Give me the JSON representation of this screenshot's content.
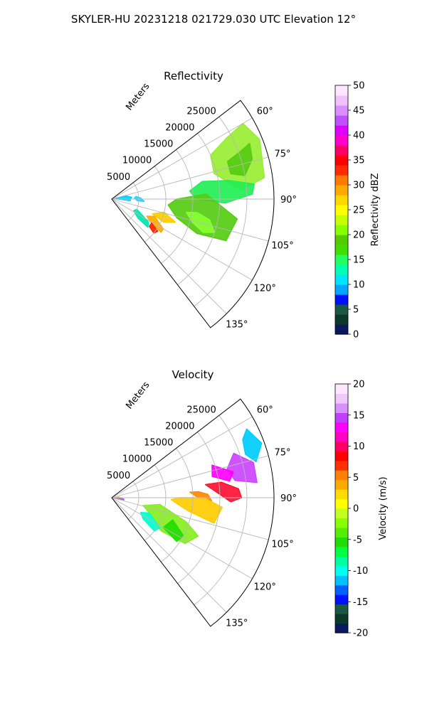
{
  "suptitle": "SKYLER-HU  20231218  021729.030 UTC Elevation 12°",
  "chart_data": [
    {
      "type": "polar-sector",
      "title": "Reflectivity",
      "radial_label": "Meters",
      "radial_ticks": [
        "5000",
        "10000",
        "15000",
        "20000",
        "25000"
      ],
      "radial_values": [
        5000,
        10000,
        15000,
        20000,
        25000
      ],
      "r_max": 30000,
      "theta_ticks": [
        "60°",
        "75°",
        "90°",
        "105°",
        "120°",
        "135°"
      ],
      "theta_values": [
        60,
        75,
        90,
        105,
        120,
        135
      ],
      "theta_range": [
        52.5,
        142.5
      ],
      "grid": true,
      "colorbar": {
        "label": "Reflectivity dBZ",
        "ticks": [
          "0",
          "5",
          "10",
          "15",
          "20",
          "25",
          "30",
          "35",
          "40",
          "45",
          "50"
        ],
        "range": [
          0,
          50
        ],
        "colors": [
          "#0a1a60",
          "#0c3a2a",
          "#1a5a40",
          "#0010ff",
          "#00a8ff",
          "#00e4ff",
          "#00ffb0",
          "#22ff60",
          "#44dd00",
          "#55cc00",
          "#88ff00",
          "#c8ff00",
          "#ffff00",
          "#ffd800",
          "#ffaa00",
          "#ff7a00",
          "#ff2a00",
          "#ff0000",
          "#ff0066",
          "#ff00cc",
          "#e000ff",
          "#c050ff",
          "#d890ff",
          "#f0c0ff",
          "#ffe8ff"
        ]
      },
      "echo_regions": [
        {
          "color": "#99ee33",
          "polygon": [
            [
              60,
              28000
            ],
            [
              68,
              29500
            ],
            [
              82,
              28500
            ],
            [
              86,
              24000
            ],
            [
              76,
              19500
            ],
            [
              66,
              20000
            ],
            [
              62,
              24000
            ]
          ]
        },
        {
          "color": "#55cc11",
          "polygon": [
            [
              68,
              27500
            ],
            [
              74,
              27000
            ],
            [
              80,
              25000
            ],
            [
              78,
              22500
            ],
            [
              72,
              22500
            ],
            [
              70,
              25000
            ]
          ]
        },
        {
          "color": "#22ee55",
          "polygon": [
            [
              79,
              17000
            ],
            [
              84,
              14500
            ],
            [
              90,
              15500
            ],
            [
              92,
              21000
            ],
            [
              88,
              26000
            ],
            [
              84,
              26500
            ],
            [
              81,
              22000
            ]
          ]
        },
        {
          "color": "#55cc11",
          "polygon": [
            [
              87,
              17500
            ],
            [
              92,
              19500
            ],
            [
              99,
              23500
            ],
            [
              110,
              22500
            ],
            [
              112,
              17000
            ],
            [
              106,
              12500
            ],
            [
              96,
              10500
            ],
            [
              90,
              12000
            ]
          ]
        },
        {
          "color": "#88ff33",
          "polygon": [
            [
              100,
              14000
            ],
            [
              106,
              15500
            ],
            [
              110,
              18000
            ],
            [
              108,
              20000
            ],
            [
              102,
              18500
            ],
            [
              99,
              16000
            ]
          ]
        },
        {
          "color": "#ffcc00",
          "polygon": [
            [
              104,
              10000
            ],
            [
              110,
              12500
            ],
            [
              114,
              10500
            ],
            [
              110,
              8000
            ]
          ]
        },
        {
          "color": "#ffaa00",
          "polygon": [
            [
              112,
              8500
            ],
            [
              120,
              11000
            ],
            [
              124,
              11000
            ],
            [
              121,
              8500
            ],
            [
              116,
              7200
            ]
          ]
        },
        {
          "color": "#ff2200",
          "polygon": [
            [
              121,
              8600
            ],
            [
              125,
              10400
            ],
            [
              129,
              10000
            ],
            [
              126,
              8600
            ]
          ]
        },
        {
          "color": "#00e5b0",
          "polygon": [
            [
              112,
              5000
            ],
            [
              122,
              8000
            ],
            [
              128,
              8500
            ],
            [
              126,
              6000
            ],
            [
              118,
              4600
            ]
          ]
        },
        {
          "color": "#00d2ff",
          "polygon": [
            [
              76,
              700
            ],
            [
              86,
              800
            ],
            [
              95,
              3400
            ],
            [
              85,
              3700
            ],
            [
              78,
              2800
            ]
          ]
        },
        {
          "color": "#22d3ff",
          "polygon": [
            [
              84,
              4500
            ],
            [
              88,
              5400
            ],
            [
              94,
              6000
            ],
            [
              94,
              4800
            ],
            [
              88,
              4200
            ]
          ]
        }
      ]
    },
    {
      "type": "polar-sector",
      "title": "Velocity",
      "radial_label": "Meters",
      "radial_ticks": [
        "5000",
        "10000",
        "15000",
        "20000",
        "25000"
      ],
      "radial_values": [
        5000,
        10000,
        15000,
        20000,
        25000
      ],
      "r_max": 30000,
      "theta_ticks": [
        "60°",
        "75°",
        "90°",
        "105°",
        "120°",
        "135°"
      ],
      "theta_values": [
        60,
        75,
        90,
        105,
        120,
        135
      ],
      "theta_range": [
        52.5,
        142.5
      ],
      "grid": true,
      "colorbar": {
        "label": "Velocity (m/s)",
        "ticks": [
          "-20",
          "-15",
          "-10",
          "-5",
          "0",
          "5",
          "10",
          "15",
          "20"
        ],
        "range": [
          -20,
          20
        ],
        "colors": [
          "#0a1a60",
          "#0c3a2a",
          "#1a5a40",
          "#0010ff",
          "#0060ff",
          "#00c0ff",
          "#00ffee",
          "#00ffa0",
          "#00ff40",
          "#22dd00",
          "#55ee00",
          "#88ff00",
          "#c0ff20",
          "#ffff00",
          "#ffdd00",
          "#ffaa00",
          "#ff8000",
          "#ff3000",
          "#ff0000",
          "#ff0060",
          "#ff00c0",
          "#ff00ff",
          "#c040ff",
          "#d890ff",
          "#f0c8ff",
          "#ffe8ff"
        ]
      },
      "echo_regions": [
        {
          "color": "#00ccff",
          "polygon": [
            [
              63,
              28000
            ],
            [
              70,
              29500
            ],
            [
              76,
              27500
            ],
            [
              72,
              26000
            ],
            [
              66,
              26500
            ]
          ]
        },
        {
          "color": "#cc44ff",
          "polygon": [
            [
              70,
              24000
            ],
            [
              76,
              27000
            ],
            [
              84,
              27000
            ],
            [
              82,
              23000
            ],
            [
              76,
              22000
            ]
          ]
        },
        {
          "color": "#ff00ff",
          "polygon": [
            [
              72,
              19500
            ],
            [
              78,
              23000
            ],
            [
              82,
              22000
            ],
            [
              78,
              19000
            ]
          ]
        },
        {
          "color": "#ff1133",
          "polygon": [
            [
              82,
              17500
            ],
            [
              86,
              19000
            ],
            [
              92,
              22000
            ],
            [
              90,
              24000
            ],
            [
              86,
              23500
            ],
            [
              82,
              20500
            ]
          ]
        },
        {
          "color": "#ff8800",
          "polygon": [
            [
              86,
              14500
            ],
            [
              90,
              16000
            ],
            [
              92,
              18500
            ],
            [
              88,
              17800
            ],
            [
              86,
              16000
            ]
          ]
        },
        {
          "color": "#ffcc00",
          "polygon": [
            [
              92,
              11000
            ],
            [
              100,
              14500
            ],
            [
              104,
              19500
            ],
            [
              95,
              20500
            ],
            [
              90,
              17000
            ],
            [
              90,
              12500
            ]
          ]
        },
        {
          "color": "#88ee22",
          "polygon": [
            [
              98,
              9000
            ],
            [
              108,
              14500
            ],
            [
              114,
              17500
            ],
            [
              122,
              16000
            ],
            [
              124,
              11000
            ],
            [
              114,
              8000
            ],
            [
              104,
              6000
            ]
          ]
        },
        {
          "color": "#22dd00",
          "polygon": [
            [
              110,
              12000
            ],
            [
              118,
              15000
            ],
            [
              124,
              14500
            ],
            [
              120,
              11000
            ]
          ]
        },
        {
          "color": "#00ffcc",
          "polygon": [
            [
              112,
              7500
            ],
            [
              122,
              10500
            ],
            [
              128,
              10000
            ],
            [
              124,
              7000
            ],
            [
              117,
              6000
            ]
          ]
        },
        {
          "color": "#aaee00",
          "polygon": [
            [
              84,
              1200
            ],
            [
              92,
              1800
            ],
            [
              100,
              2000
            ],
            [
              98,
              800
            ]
          ]
        },
        {
          "color": "#ff33aa",
          "polygon": [
            [
              90,
              400
            ],
            [
              93,
              600
            ],
            [
              95,
              1500
            ],
            [
              91,
              1500
            ]
          ]
        },
        {
          "color": "#aa55ff",
          "polygon": [
            [
              96,
              1500
            ],
            [
              98,
              1800
            ],
            [
              100,
              2300
            ],
            [
              96,
              2200
            ]
          ]
        }
      ]
    }
  ]
}
